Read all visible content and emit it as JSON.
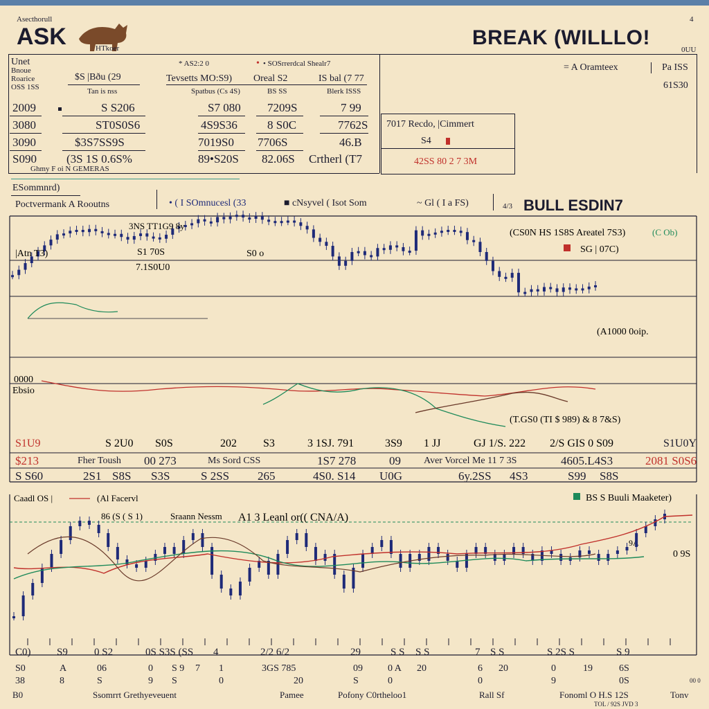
{
  "header": {
    "brand_small": "Asecthorull",
    "brand": "ASK",
    "brand_sub": "HTkoer",
    "title": "BREAK (WILLLO!",
    "corner_num": "4",
    "corner_sub": "0UU"
  },
  "stats_panel": {
    "row_labels_top": [
      "Unet",
      "Bnoue",
      "Roarice",
      "OSS 1SS"
    ],
    "col_headers": [
      "$S |Bðu (29",
      "Tan is nss"
    ],
    "group2_top": [
      "* AS2:2 0",
      "• SOSrrerdcal Shealr7"
    ],
    "group2_sub": [
      "Tevsetts MO:S9)",
      "Oreal S2",
      "IS bal (7 77"
    ],
    "group2_sub2": [
      "Spatbus (Cs 4S)",
      "BS SS",
      "Blerk ISSS"
    ],
    "rows": [
      [
        "2009",
        "S S206",
        "S7 080",
        "7209S",
        "7 99"
      ],
      [
        "3080",
        "ST0S0S6",
        "4S9S36",
        "8 S0C",
        "7762S"
      ],
      [
        "3090",
        "$3S7SS9S",
        "7019S0",
        "7706S",
        "46.B"
      ],
      [
        "S090",
        "(3S 1S 0.6S%",
        "89•S20S",
        "82.06S",
        "Crtherl (T7"
      ]
    ],
    "footnote": "Ghmy F oi N GEMERAS"
  },
  "result_box": {
    "title": "7017 Recdo, |Cimmert",
    "key": "S4",
    "value": "42SS 80 2 7 3M"
  },
  "right_info": {
    "label": "= A Oramteex",
    "value1": "Pa ISS",
    "value2": "61S30"
  },
  "main_chart": {
    "panel_title": "ESommnrd)",
    "panel_sub": "Poctvermank A Rooutns",
    "legend": [
      "• ( I SOmnucesl (33",
      "■ cNsyvel ( Isot Som",
      "~ Gl ( I a FS)"
    ],
    "heading": "BULL ESDIN7",
    "heading_prefix": "4/3",
    "annotations": {
      "a1": "3NS TT1G9 8y",
      "a2": "S1 70S",
      "a3": "7.1S0U0",
      "a4": "S0 o",
      "a5": "(CS0N HS 1S8S Areatel 7S3)",
      "a6": "SG | 07C)",
      "a7": "(A1000 0oip.",
      "a8": "(T.GS0 (TI $ 989) & 8 7&S)",
      "a9": "(C Ob)",
      "left1": "|Atn T3)",
      "left2": "0000",
      "left3": "Ebsio",
      "left4": "S1U0"
    },
    "tick_row": [
      "S1U9",
      "S 2U0",
      "S0S",
      "202",
      "S3",
      "3 1SJ. 791",
      "3S9",
      "1 JJ",
      "GJ 1/S. 222",
      "2/S GIS 0 S09",
      "S1U0Y"
    ]
  },
  "summary_rows": [
    [
      "$213",
      "Fher Toush",
      "00 273",
      "Ms Sord CSS",
      "1S7 278",
      "09",
      "Aver Vorcel Me 11 7 3S",
      "4605.L4S3",
      "2081 S0S6"
    ],
    [
      "S S60",
      "2S1",
      "S8S",
      "S3S",
      "S 2SS",
      "265",
      "4S0. S14",
      "U0G",
      "6y.2SS",
      "4S3",
      "S99",
      "S8S"
    ]
  ],
  "lower_chart": {
    "legend_left": "Caadl OS |",
    "legend_mid": "(Al Facervl",
    "legend_right": "BS S Buuli Maaketer)",
    "anno1": "86 (S ( S 1)",
    "anno2": "Sraann Nessm",
    "anno3": "A1 3 Leanl or(( CNA/A)",
    "right_label": "0 9S",
    "small_right": "9A"
  },
  "bottom_grid": {
    "row1": [
      "C0)",
      "S9",
      "0 S2",
      "0S S3S (SS",
      "4",
      "2/2 6/2",
      "29",
      "S S",
      "S S",
      "7",
      "S S",
      "S 2S S",
      "S 9"
    ],
    "row2": [
      "S0",
      "A",
      "06",
      "0",
      "S 9",
      "7",
      "1",
      "3GS 785",
      "09",
      "0 A",
      "20",
      "6",
      "20",
      "0",
      "19",
      "6S"
    ],
    "row3": [
      "38",
      "8",
      "S",
      "9",
      "S",
      "0",
      "20",
      "S",
      "0",
      "0",
      "9",
      "0S"
    ],
    "footer_labels": [
      "B0",
      "Ssomrrt Grethyeveuent",
      "Pamee",
      "Pofony C0rtheloo1",
      "Rall Sf",
      "Fonoml O H.S 12S",
      "Tonv"
    ],
    "footer_sub": "TOL / 92S JVD 3",
    "footer_tiny": "00 0"
  },
  "chart_data": [
    {
      "type": "candlestick",
      "title": "BULL ESDIN7",
      "series": [
        {
          "name": "( I SOmnucesl (33",
          "color": "#1e2a78",
          "values": [
            452,
            440,
            425,
            410,
            398,
            385,
            372,
            360,
            358,
            352,
            350,
            355,
            348,
            353,
            357,
            360,
            359,
            366,
            372,
            364,
            358,
            365,
            367,
            370,
            361,
            347,
            342,
            339,
            335,
            326,
            331,
            333,
            321,
            326,
            320,
            316,
            322,
            325,
            319,
            327,
            330,
            332,
            330,
            329,
            333,
            341,
            349,
            368,
            377,
            386,
            410,
            431,
            420,
            400,
            398,
            407,
            410,
            391,
            395,
            385,
            389,
            398,
            397,
            351,
            363,
            359,
            356,
            352,
            350,
            352,
            355,
            373,
            377,
            400,
            420,
            443,
            456,
            458,
            447,
            491,
            490,
            484,
            489,
            479,
            482,
            490,
            480,
            485,
            482,
            484,
            478,
            475
          ]
        }
      ]
    },
    {
      "type": "candlestick",
      "series": [
        {
          "name": "(Al Facervl",
          "color": "#1e2a78",
          "values": [
            890,
            860,
            842,
            820,
            800,
            780,
            760,
            752,
            758,
            770,
            790,
            808,
            815,
            820,
            810,
            800,
            790,
            800,
            780,
            770,
            790,
            830,
            850,
            860,
            840,
            820,
            810,
            830,
            800,
            780,
            770,
            790,
            810,
            800,
            830,
            850,
            820,
            800,
            790,
            780,
            800,
            820,
            800,
            810,
            790,
            800,
            810,
            820,
            800,
            790,
            800,
            810,
            800,
            790,
            800,
            810,
            795,
            800,
            810,
            805,
            795,
            800,
            810,
            800,
            795,
            790,
            770,
            760,
            750,
            742
          ]
        }
      ]
    }
  ]
}
